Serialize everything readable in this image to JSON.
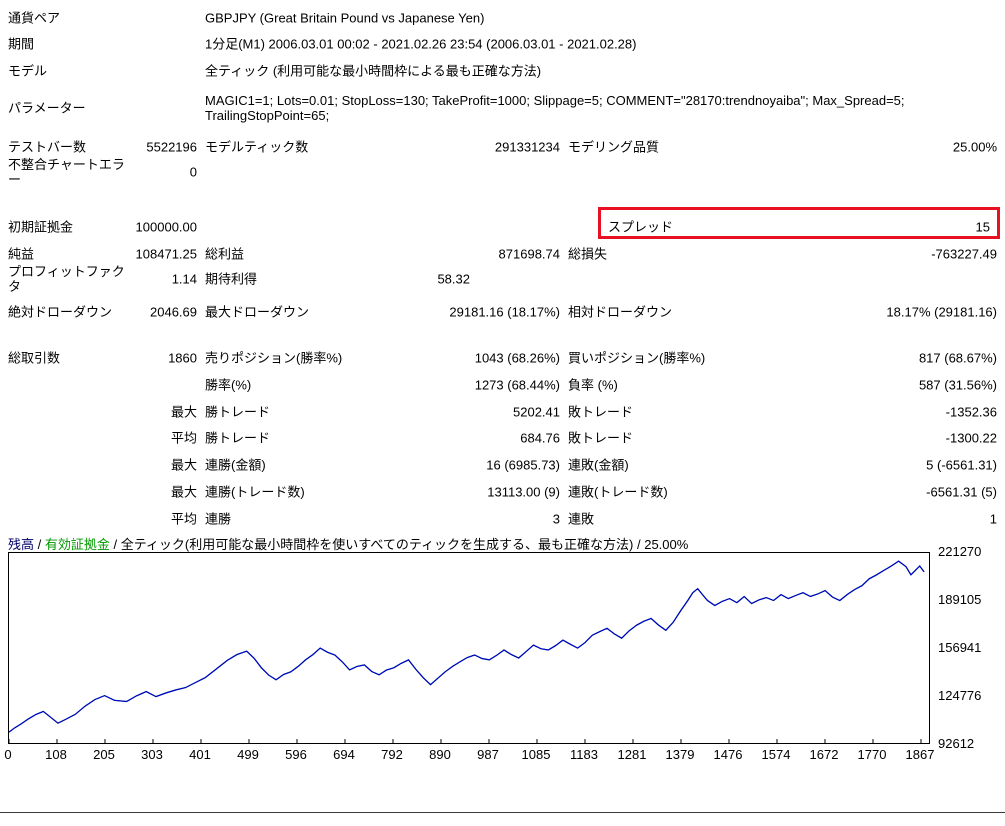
{
  "report": {
    "info_rows": [
      {
        "label": "通貨ペア",
        "value": "GBPJPY (Great Britain Pound vs Japanese Yen)"
      },
      {
        "label": "期間",
        "value": "1分足(M1) 2006.03.01 00:02 - 2021.02.26 23:54 (2006.03.01 - 2021.02.28)"
      },
      {
        "label": "モデル",
        "value": "全ティック (利用可能な最小時間枠による最も正確な方法)"
      },
      {
        "label": "パラメーター",
        "value": "MAGIC1=1; Lots=0.01; StopLoss=130; TakeProfit=1000; Slippage=5; COMMENT=\"28170:trendnoyaiba\"; Max_Spread=5; TrailingStopPoint=65;"
      }
    ],
    "stat_rows": [
      {
        "c1l": "テストバー数",
        "c1v": "5522196",
        "c2l": "モデルティック数",
        "c2v": "291331234",
        "c3l": "モデリング品質",
        "c3v": "25.00%"
      },
      {
        "c1l": "不整合チャートエラー",
        "c1v": "0"
      },
      {
        "c1l": "初期証拠金",
        "c1v": "100000.00",
        "c3l": "スプレッド",
        "c3v": "15",
        "highlighted": true
      },
      {
        "c1l": "純益",
        "c1v": "108471.25",
        "c2l": "総利益",
        "c2v": "871698.74",
        "c3l": "総損失",
        "c3v": "-763227.49"
      },
      {
        "c1l": "プロフィットファクタ",
        "c1v": "1.14",
        "c2l": "期待利得",
        "c2v": "58.32"
      },
      {
        "c1l": "絶対ドローダウン",
        "c1v": "2046.69",
        "c2l": "最大ドローダウン",
        "c2v": "29181.16 (18.17%)",
        "c3l": "相対ドローダウン",
        "c3v": "18.17% (29181.16)"
      },
      {
        "c1l": "総取引数",
        "c1v": "1860",
        "c2l": "売りポジション(勝率%)",
        "c2v": "1043 (68.26%)",
        "c3l": "買いポジション(勝率%)",
        "c3v": "817 (68.67%)"
      },
      {
        "c2l": "勝率(%)",
        "c2v": "1273 (68.44%)",
        "c3l": "負率 (%)",
        "c3v": "587 (31.56%)"
      },
      {
        "c1v": "最大",
        "c2l": "勝トレード",
        "c2v": "5202.41",
        "c3l": "敗トレード",
        "c3v": "-1352.36"
      },
      {
        "c1v": "平均",
        "c2l": "勝トレード",
        "c2v": "684.76",
        "c3l": "敗トレード",
        "c3v": "-1300.22"
      },
      {
        "c1v": "最大",
        "c2l": "連勝(金額)",
        "c2v": "16 (6985.73)",
        "c3l": "連敗(金額)",
        "c3v": "5 (-6561.31)"
      },
      {
        "c1v": "最大",
        "c2l": "連勝(トレード数)",
        "c2v": "13113.00 (9)",
        "c3l": "連敗(トレード数)",
        "c3v": "-6561.31 (5)"
      },
      {
        "c1v": "平均",
        "c2l": "連勝",
        "c2v": "3",
        "c3l": "連敗",
        "c3v": "1"
      }
    ]
  },
  "colors": {
    "balance_line": "#0000cc",
    "equity_line": "#00a000",
    "balance_label": "#000066",
    "equity_label": "#009900",
    "highlight_box": "#e81123"
  },
  "chart_data": {
    "type": "line",
    "legend": {
      "balance": "残高",
      "separator": " / ",
      "equity": "有効証拠金",
      "note": " / 全ティック(利用可能な最小時間枠を使いすべてのティックを生成する、最も正確な方法) / 25.00%"
    },
    "xlabel": "",
    "ylabel": "",
    "x_range": [
      0,
      1877
    ],
    "y_range": [
      92612,
      221270
    ],
    "x_ticks": [
      0,
      108,
      205,
      303,
      401,
      499,
      596,
      694,
      792,
      890,
      987,
      1085,
      1183,
      1281,
      1379,
      1476,
      1574,
      1672,
      1770,
      1867
    ],
    "y_ticks": [
      221270,
      189105,
      156941,
      124776,
      92612
    ],
    "grid": false,
    "legend_position": "top-left",
    "series": [
      {
        "name": "残高",
        "points": [
          [
            0,
            100000
          ],
          [
            12,
            103000
          ],
          [
            24,
            105400
          ],
          [
            40,
            109000
          ],
          [
            55,
            112000
          ],
          [
            70,
            114000
          ],
          [
            85,
            110000
          ],
          [
            100,
            106000
          ],
          [
            115,
            108500
          ],
          [
            135,
            112000
          ],
          [
            155,
            117500
          ],
          [
            175,
            122000
          ],
          [
            195,
            124700
          ],
          [
            215,
            121500
          ],
          [
            240,
            120700
          ],
          [
            260,
            124500
          ],
          [
            280,
            127400
          ],
          [
            300,
            124000
          ],
          [
            320,
            126500
          ],
          [
            340,
            128500
          ],
          [
            360,
            130100
          ],
          [
            380,
            133500
          ],
          [
            400,
            136800
          ],
          [
            420,
            142000
          ],
          [
            445,
            148500
          ],
          [
            465,
            152500
          ],
          [
            485,
            154800
          ],
          [
            500,
            150000
          ],
          [
            515,
            143500
          ],
          [
            530,
            138500
          ],
          [
            545,
            135400
          ],
          [
            560,
            139000
          ],
          [
            575,
            140800
          ],
          [
            590,
            144500
          ],
          [
            605,
            148900
          ],
          [
            620,
            152500
          ],
          [
            635,
            156900
          ],
          [
            650,
            154000
          ],
          [
            665,
            152200
          ],
          [
            680,
            147500
          ],
          [
            695,
            142100
          ],
          [
            710,
            144500
          ],
          [
            725,
            145500
          ],
          [
            740,
            141000
          ],
          [
            755,
            138800
          ],
          [
            770,
            142000
          ],
          [
            785,
            143500
          ],
          [
            800,
            146500
          ],
          [
            815,
            148900
          ],
          [
            830,
            142500
          ],
          [
            845,
            136800
          ],
          [
            860,
            132100
          ],
          [
            875,
            136500
          ],
          [
            890,
            140800
          ],
          [
            905,
            144500
          ],
          [
            920,
            147500
          ],
          [
            935,
            150500
          ],
          [
            950,
            152200
          ],
          [
            965,
            149800
          ],
          [
            980,
            148900
          ],
          [
            995,
            152000
          ],
          [
            1010,
            155600
          ],
          [
            1025,
            152500
          ],
          [
            1040,
            150200
          ],
          [
            1055,
            154500
          ],
          [
            1070,
            158900
          ],
          [
            1085,
            156500
          ],
          [
            1100,
            155600
          ],
          [
            1115,
            158500
          ],
          [
            1130,
            162300
          ],
          [
            1145,
            159500
          ],
          [
            1160,
            156900
          ],
          [
            1175,
            160500
          ],
          [
            1190,
            165600
          ],
          [
            1205,
            168000
          ],
          [
            1220,
            170300
          ],
          [
            1235,
            166500
          ],
          [
            1250,
            163600
          ],
          [
            1265,
            168500
          ],
          [
            1280,
            172300
          ],
          [
            1295,
            175000
          ],
          [
            1310,
            177000
          ],
          [
            1325,
            172500
          ],
          [
            1340,
            168900
          ],
          [
            1355,
            174300
          ],
          [
            1370,
            182000
          ],
          [
            1385,
            189100
          ],
          [
            1395,
            194400
          ],
          [
            1405,
            197100
          ],
          [
            1415,
            193000
          ],
          [
            1425,
            189100
          ],
          [
            1440,
            185700
          ],
          [
            1455,
            188500
          ],
          [
            1470,
            190400
          ],
          [
            1485,
            187700
          ],
          [
            1500,
            191800
          ],
          [
            1515,
            187100
          ],
          [
            1530,
            189500
          ],
          [
            1545,
            191100
          ],
          [
            1560,
            189100
          ],
          [
            1575,
            193100
          ],
          [
            1590,
            190400
          ],
          [
            1605,
            192500
          ],
          [
            1620,
            194400
          ],
          [
            1635,
            191800
          ],
          [
            1650,
            193500
          ],
          [
            1665,
            195800
          ],
          [
            1680,
            191500
          ],
          [
            1695,
            189100
          ],
          [
            1710,
            193100
          ],
          [
            1725,
            196500
          ],
          [
            1740,
            199100
          ],
          [
            1755,
            203800
          ],
          [
            1770,
            206500
          ],
          [
            1785,
            209500
          ],
          [
            1800,
            212500
          ],
          [
            1815,
            215800
          ],
          [
            1830,
            212000
          ],
          [
            1840,
            206500
          ],
          [
            1850,
            209800
          ],
          [
            1858,
            212500
          ],
          [
            1867,
            208471
          ]
        ]
      },
      {
        "name": "有効証拠金",
        "points": [
          [
            0,
            100000
          ],
          [
            12,
            103000
          ],
          [
            24,
            105400
          ],
          [
            40,
            109000
          ],
          [
            55,
            112000
          ],
          [
            70,
            114000
          ],
          [
            85,
            110000
          ],
          [
            100,
            106000
          ],
          [
            115,
            108500
          ],
          [
            135,
            112000
          ],
          [
            155,
            117500
          ],
          [
            175,
            122000
          ],
          [
            195,
            124700
          ],
          [
            215,
            121500
          ],
          [
            240,
            120700
          ],
          [
            260,
            124500
          ],
          [
            280,
            127400
          ],
          [
            300,
            124000
          ],
          [
            320,
            126500
          ],
          [
            340,
            128500
          ],
          [
            360,
            130100
          ],
          [
            380,
            133500
          ],
          [
            400,
            136800
          ],
          [
            420,
            142000
          ],
          [
            445,
            148500
          ],
          [
            465,
            152500
          ],
          [
            485,
            154800
          ],
          [
            500,
            150000
          ],
          [
            515,
            143500
          ],
          [
            530,
            138500
          ],
          [
            545,
            135400
          ],
          [
            560,
            139000
          ],
          [
            575,
            140800
          ],
          [
            590,
            144500
          ],
          [
            605,
            148900
          ],
          [
            620,
            152500
          ],
          [
            635,
            156900
          ],
          [
            650,
            154000
          ],
          [
            665,
            152200
          ],
          [
            680,
            147500
          ],
          [
            695,
            142100
          ],
          [
            710,
            144500
          ],
          [
            725,
            145500
          ],
          [
            740,
            141000
          ],
          [
            755,
            138800
          ],
          [
            770,
            142000
          ],
          [
            785,
            143500
          ],
          [
            800,
            146500
          ],
          [
            815,
            148900
          ],
          [
            830,
            142500
          ],
          [
            845,
            136800
          ],
          [
            860,
            132100
          ],
          [
            875,
            136500
          ],
          [
            890,
            140800
          ],
          [
            905,
            144500
          ],
          [
            920,
            147500
          ],
          [
            935,
            150500
          ],
          [
            950,
            152200
          ],
          [
            965,
            149800
          ],
          [
            980,
            148900
          ],
          [
            995,
            152000
          ],
          [
            1010,
            155600
          ],
          [
            1025,
            152500
          ],
          [
            1040,
            150200
          ],
          [
            1055,
            154500
          ],
          [
            1070,
            158900
          ],
          [
            1085,
            156500
          ],
          [
            1100,
            155600
          ],
          [
            1115,
            158500
          ],
          [
            1130,
            162300
          ],
          [
            1145,
            159500
          ],
          [
            1160,
            156900
          ],
          [
            1175,
            160500
          ],
          [
            1190,
            165600
          ],
          [
            1205,
            168000
          ],
          [
            1220,
            170300
          ],
          [
            1235,
            166500
          ],
          [
            1250,
            163600
          ],
          [
            1265,
            168500
          ],
          [
            1280,
            172300
          ],
          [
            1295,
            175000
          ],
          [
            1310,
            177000
          ],
          [
            1325,
            172500
          ],
          [
            1340,
            168900
          ],
          [
            1355,
            174300
          ],
          [
            1370,
            182000
          ],
          [
            1385,
            189100
          ],
          [
            1395,
            194400
          ],
          [
            1405,
            197100
          ],
          [
            1415,
            193000
          ],
          [
            1425,
            189100
          ],
          [
            1440,
            185700
          ],
          [
            1455,
            188500
          ],
          [
            1470,
            190400
          ],
          [
            1485,
            187700
          ],
          [
            1500,
            191800
          ],
          [
            1515,
            187100
          ],
          [
            1530,
            189500
          ],
          [
            1545,
            191100
          ],
          [
            1560,
            189100
          ],
          [
            1575,
            193100
          ],
          [
            1590,
            190400
          ],
          [
            1605,
            192500
          ],
          [
            1620,
            194400
          ],
          [
            1635,
            191800
          ],
          [
            1650,
            193500
          ],
          [
            1665,
            195800
          ],
          [
            1680,
            191500
          ],
          [
            1695,
            189100
          ],
          [
            1710,
            193100
          ],
          [
            1725,
            196500
          ],
          [
            1740,
            199100
          ],
          [
            1755,
            203800
          ],
          [
            1770,
            206500
          ],
          [
            1785,
            209500
          ],
          [
            1800,
            212500
          ],
          [
            1815,
            215800
          ],
          [
            1830,
            212000
          ],
          [
            1840,
            206500
          ],
          [
            1850,
            209800
          ],
          [
            1858,
            212500
          ],
          [
            1867,
            208471
          ]
        ]
      }
    ]
  }
}
